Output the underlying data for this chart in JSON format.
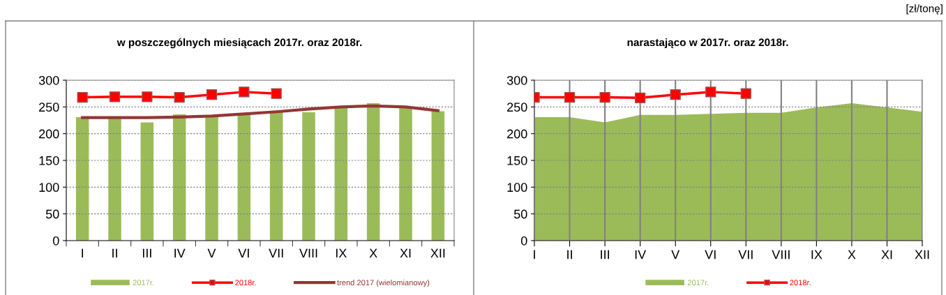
{
  "chart_data": [
    {
      "type": "bar",
      "title": "w poszczególnych miesiącach 2017r. oraz 2018r.",
      "categories": [
        "I",
        "II",
        "III",
        "IV",
        "V",
        "VI",
        "VII",
        "VIII",
        "IX",
        "X",
        "XI",
        "XII"
      ],
      "series": [
        {
          "name": "2017r.",
          "type": "bar",
          "color": "#9bbb59",
          "values": [
            231,
            230,
            221,
            236,
            234,
            236,
            240,
            240,
            250,
            257,
            250,
            242
          ]
        },
        {
          "name": "2018r.",
          "type": "line",
          "color": "#ff0000",
          "marker": "square",
          "values": [
            268,
            269,
            269,
            268,
            273,
            278,
            275,
            null,
            null,
            null,
            null,
            null
          ]
        },
        {
          "name": "trend 2017 (wielomianowy)",
          "type": "line",
          "color": "#943634",
          "marker": "none",
          "values": [
            230,
            230,
            230,
            231,
            233,
            237,
            241,
            246,
            250,
            252,
            250,
            243
          ]
        }
      ],
      "ylim": [
        0,
        300
      ],
      "yticks": [
        0,
        50,
        100,
        150,
        200,
        250,
        300
      ],
      "grid": "y",
      "legend": "bottom"
    },
    {
      "type": "area",
      "title": "narastająco w 2017r. oraz 2018r.",
      "categories": [
        "I",
        "II",
        "III",
        "IV",
        "V",
        "VI",
        "VII",
        "VIII",
        "IX",
        "X",
        "XI",
        "XII"
      ],
      "series": [
        {
          "name": "2017r.",
          "type": "area",
          "color": "#9bbb59",
          "values": [
            231,
            231,
            221,
            235,
            235,
            237,
            239,
            239,
            249,
            257,
            249,
            241
          ]
        },
        {
          "name": "2018r.",
          "type": "line",
          "color": "#ff0000",
          "marker": "square",
          "values": [
            268,
            268,
            268,
            267,
            273,
            278,
            275,
            null,
            null,
            null,
            null,
            null
          ]
        }
      ],
      "ylim": [
        0,
        300
      ],
      "yticks": [
        0,
        50,
        100,
        150,
        200,
        250,
        300
      ],
      "grid": true,
      "legend": "bottom",
      "annotations": [
        "[zł/tonę]"
      ]
    }
  ]
}
